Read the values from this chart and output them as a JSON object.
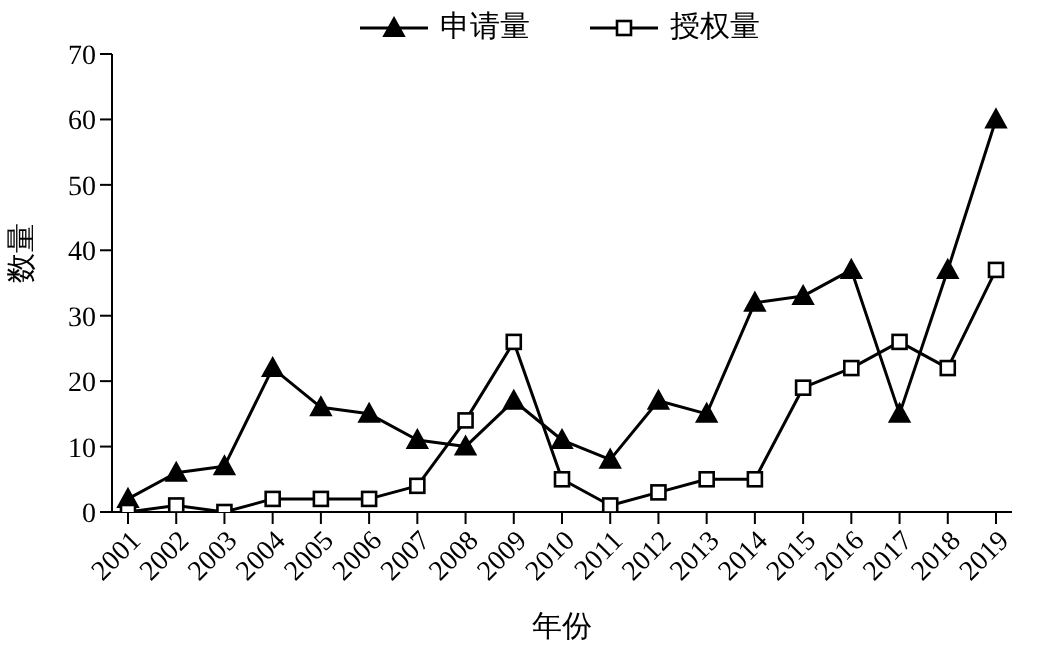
{
  "chart_data": {
    "type": "line",
    "xlabel": "年份",
    "ylabel": "数量",
    "categories": [
      "2001",
      "2002",
      "2003",
      "2004",
      "2005",
      "2006",
      "2007",
      "2008",
      "2009",
      "2010",
      "2011",
      "2012",
      "2013",
      "2014",
      "2015",
      "2016",
      "2017",
      "2018",
      "2019"
    ],
    "series": [
      {
        "name": "申请量",
        "color": "#000000",
        "marker": "triangle",
        "values": [
          2,
          6,
          7,
          22,
          16,
          15,
          11,
          10,
          17,
          11,
          8,
          17,
          15,
          32,
          33,
          37,
          15,
          37,
          60
        ]
      },
      {
        "name": "授权量",
        "color": "#000000",
        "marker": "square",
        "values": [
          0,
          1,
          0,
          2,
          2,
          2,
          4,
          14,
          26,
          5,
          1,
          3,
          5,
          5,
          19,
          22,
          26,
          22,
          37
        ]
      }
    ],
    "ylim": [
      0,
      70
    ],
    "yticks": [
      0,
      10,
      20,
      30,
      40,
      50,
      60,
      70
    ],
    "grid": false,
    "legend": "top",
    "line_style": "solid"
  }
}
